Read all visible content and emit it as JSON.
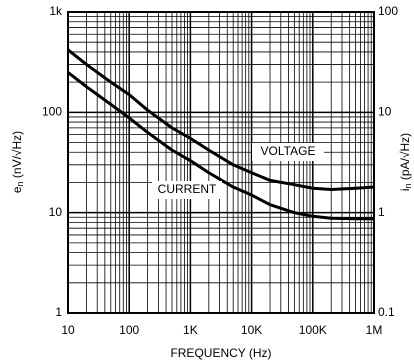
{
  "chart_data": {
    "type": "line",
    "xlabel": "FREQUENCY (Hz)",
    "ylabel": {
      "symbol": "e",
      "subscript": "n",
      "unit": " (nV/√Hz)"
    },
    "y2label": {
      "symbol": "i",
      "subscript": "n",
      "unit": " (pA/√Hz)"
    },
    "x": [
      10,
      20,
      50,
      100,
      200,
      500,
      1000,
      2000,
      5000,
      10000,
      20000,
      50000,
      100000,
      200000,
      500000,
      1000000
    ],
    "series": [
      {
        "name": "VOLTAGE",
        "color": "#000000",
        "axis": "y",
        "values": [
          420,
          300,
          200,
          150,
          105,
          70,
          55,
          42,
          30,
          25,
          21,
          19,
          17.5,
          17,
          17.5,
          18
        ]
      },
      {
        "name": "CURRENT",
        "color": "#000000",
        "axis": "y2",
        "values": [
          25,
          18,
          12,
          8.8,
          6.3,
          4.2,
          3.3,
          2.5,
          1.8,
          1.5,
          1.2,
          1.0,
          0.92,
          0.88,
          0.87,
          0.87
        ]
      }
    ],
    "xlim": [
      10,
      1000000
    ],
    "xticks": [
      10,
      100,
      {
        "value": 1000,
        "label": "1K"
      },
      {
        "value": 10000,
        "label": "10K"
      },
      {
        "value": 100000,
        "label": "100K"
      },
      {
        "value": 1000000,
        "label": "1M"
      }
    ],
    "ylim": [
      1,
      1000
    ],
    "yticks": [
      1,
      10,
      100,
      {
        "value": 1000,
        "label": "1k"
      }
    ],
    "y2lim": [
      0.1,
      100
    ],
    "y2ticks": [
      0.1,
      1,
      10,
      100
    ],
    "xscale": "log",
    "yscale": "log",
    "grid": "log-minor"
  }
}
